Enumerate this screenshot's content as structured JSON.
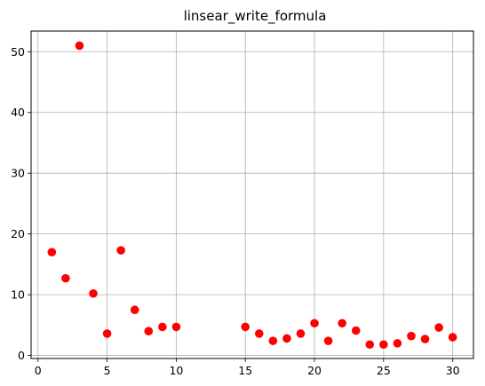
{
  "chart_data": {
    "type": "scatter",
    "title": "linsear_write_formula",
    "xlabel": "",
    "ylabel": "",
    "xlim": [
      -0.5,
      31.5
    ],
    "ylim": [
      -0.5,
      53.4
    ],
    "xticks": [
      0,
      5,
      10,
      15,
      20,
      25,
      30
    ],
    "yticks": [
      0,
      10,
      20,
      30,
      40,
      50
    ],
    "grid": true,
    "marker_color": "#ff0000",
    "series": [
      {
        "x": [
          1,
          2,
          3,
          4,
          5,
          6,
          7,
          8,
          9,
          10,
          15,
          16,
          17,
          18,
          19,
          20,
          21,
          22,
          23,
          24,
          25,
          26,
          27,
          28,
          29,
          30
        ],
        "y": [
          17.0,
          12.7,
          51.0,
          10.2,
          3.6,
          17.3,
          7.5,
          4.0,
          4.7,
          4.7,
          4.7,
          3.6,
          2.4,
          2.8,
          3.6,
          5.3,
          2.4,
          5.3,
          4.1,
          1.8,
          1.8,
          2.0,
          3.2,
          2.7,
          4.6,
          3.0
        ]
      }
    ]
  }
}
